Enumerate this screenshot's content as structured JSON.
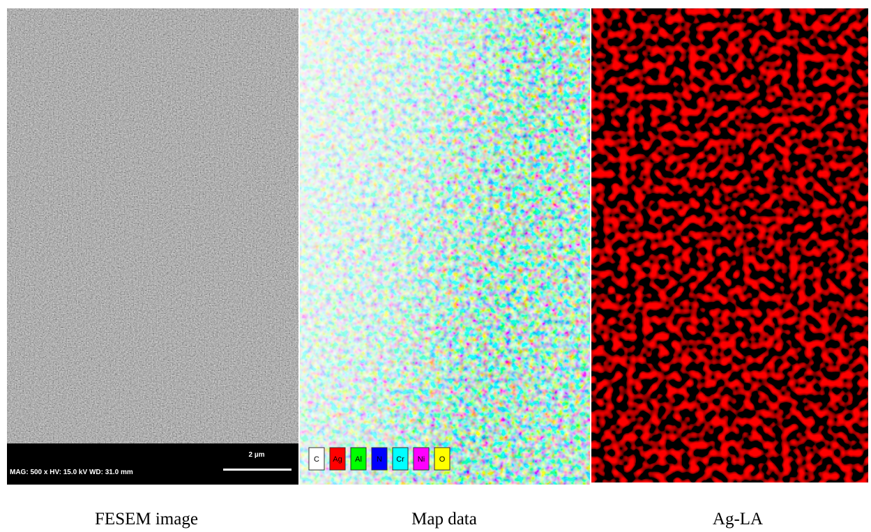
{
  "panels": [
    {
      "caption": "FESEM image",
      "info": "MAG: 500 x   HV: 15.0 kV   WD: 31.0 mm",
      "scale_bar": "2 µm"
    },
    {
      "caption": "Map data",
      "legend": [
        "C",
        "Ag",
        "Al",
        "N",
        "Cr",
        "Ni",
        "O"
      ]
    },
    {
      "caption": "Ag-LA"
    }
  ]
}
